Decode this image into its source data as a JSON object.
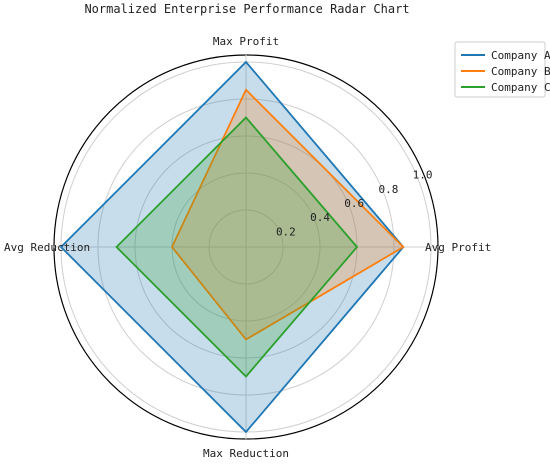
{
  "chart_data": {
    "type": "radar",
    "title": "Normalized Enterprise Performance Radar Chart",
    "axes": [
      "Avg Profit",
      "Max Profit",
      "Avg Reduction",
      "Max Reduction"
    ],
    "rlim": [
      0,
      1
    ],
    "radial_ticks": [
      "0.2",
      "0.4",
      "0.6",
      "0.8",
      "1.0"
    ],
    "radial_tick_values": [
      0.2,
      0.4,
      0.6,
      0.8,
      1.0
    ],
    "grid": true,
    "legend_position": "top-right",
    "series": [
      {
        "name": "Company A",
        "values": [
          0.85,
          1.0,
          1.0,
          1.0
        ],
        "color": "#1f77b4"
      },
      {
        "name": "Company B",
        "values": [
          0.85,
          0.85,
          0.4,
          0.5
        ],
        "color": "#ff7f0e"
      },
      {
        "name": "Company C",
        "values": [
          0.6,
          0.7,
          0.7,
          0.7
        ],
        "color": "#2ca02c"
      }
    ]
  }
}
